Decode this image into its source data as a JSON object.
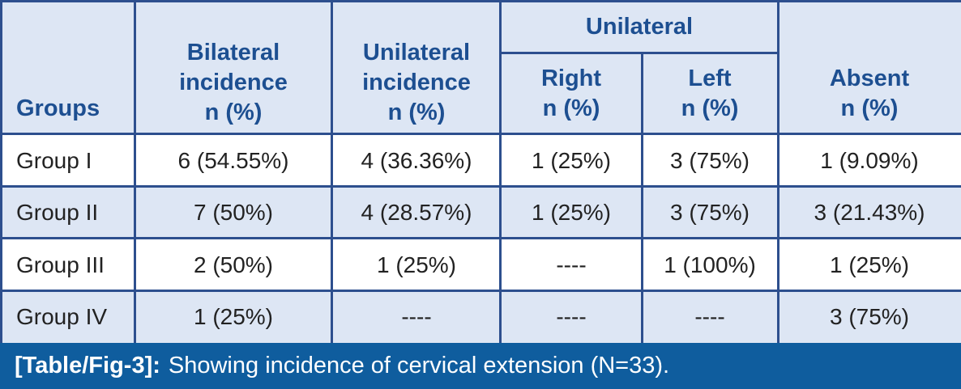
{
  "table": {
    "header": {
      "groups": "Groups",
      "bilateral": [
        "Bilateral",
        "incidence",
        "n (%)"
      ],
      "unilateral_incidence": [
        "Unilateral",
        "incidence",
        "n (%)"
      ],
      "unilateral_group": "Unilateral",
      "right": [
        "Right",
        "n (%)"
      ],
      "left": [
        "Left",
        "n (%)"
      ],
      "absent": [
        "Absent",
        "n (%)"
      ]
    },
    "rows": [
      [
        "Group I",
        "6 (54.55%)",
        "4 (36.36%)",
        "1 (25%)",
        "3 (75%)",
        "1 (9.09%)"
      ],
      [
        "Group II",
        "7 (50%)",
        "4 (28.57%)",
        "1 (25%)",
        "3 (75%)",
        "3 (21.43%)"
      ],
      [
        "Group III",
        "2 (50%)",
        "1 (25%)",
        "----",
        "1 (100%)",
        "1 (25%)"
      ],
      [
        "Group IV",
        "1 (25%)",
        "----",
        "----",
        "----",
        "3 (75%)"
      ]
    ]
  },
  "caption": {
    "label": "[Table/Fig-3]:",
    "text": "Showing incidence of cervical extension (N=33)."
  },
  "colors": {
    "header_bg": "#dde6f4",
    "header_text": "#1d4f91",
    "row_odd": "#ffffff",
    "row_even": "#dde6f4",
    "border": "#2d4f8e",
    "caption_bg": "#0f5d9e"
  }
}
